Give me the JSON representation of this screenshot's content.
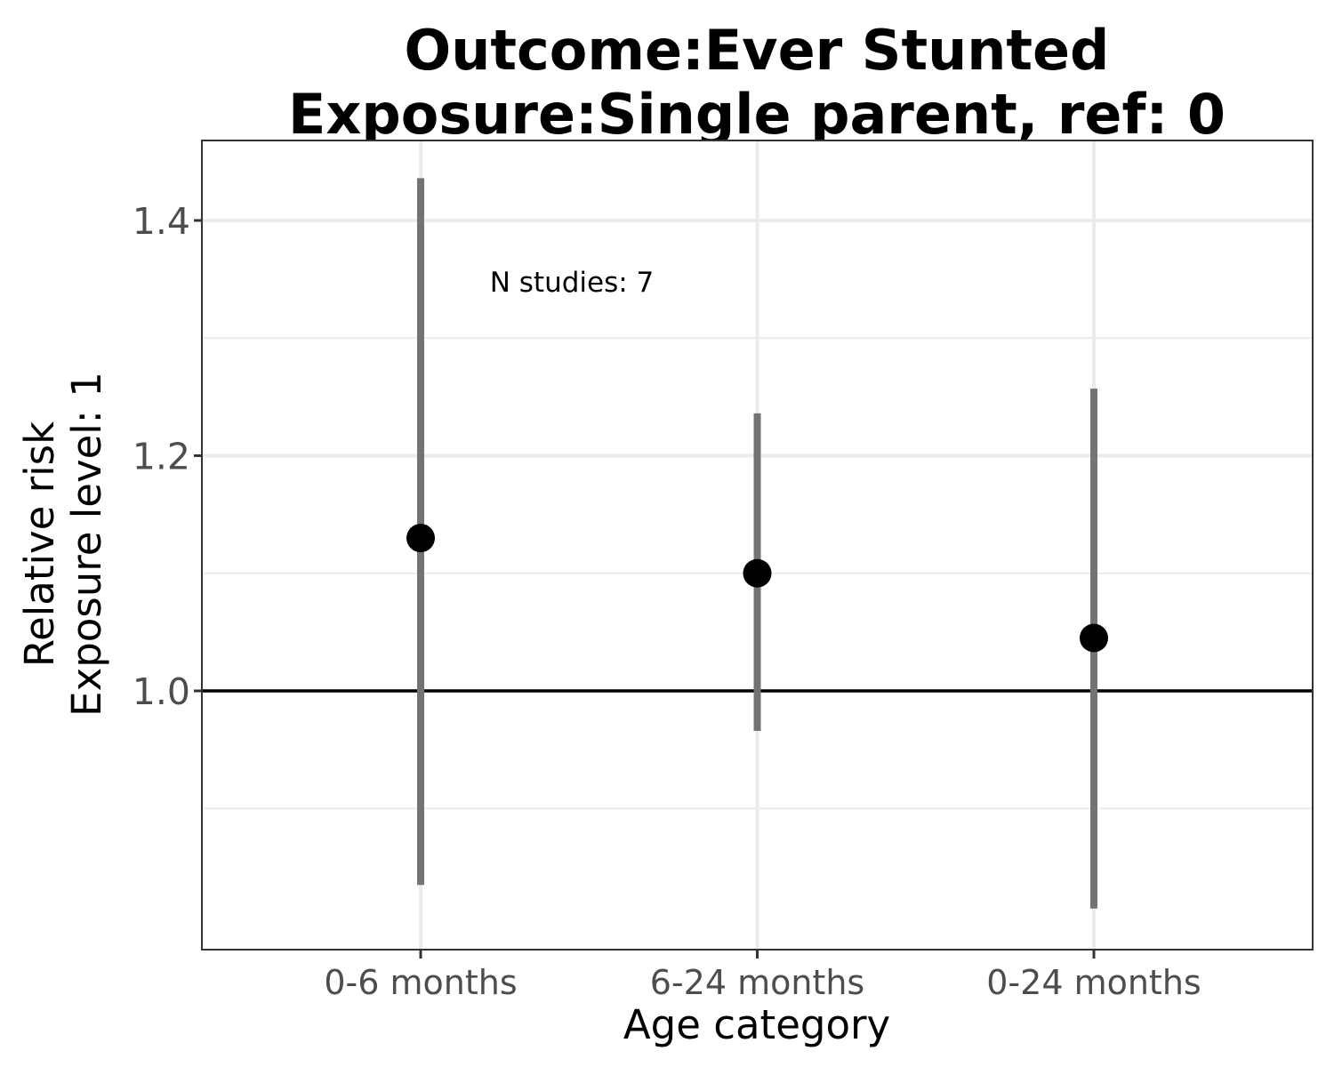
{
  "chart_data": {
    "type": "scatter",
    "title": "Outcome:Ever Stunted\nExposure:Single parent, ref: 0",
    "title_lines": [
      "Outcome:Ever Stunted",
      "Exposure:Single parent, ref: 0"
    ],
    "xlabel": "Age category",
    "ylabel_lines": [
      "Relative risk",
      "Exposure level: 1"
    ],
    "categories": [
      "0-6 months",
      "6-24 months",
      "0-24 months"
    ],
    "series": [
      {
        "values": [
          1.13,
          1.1,
          1.045
        ],
        "ci_lower": [
          0.835,
          0.966,
          0.815
        ],
        "ci_upper": [
          1.436,
          1.236,
          1.257
        ]
      }
    ],
    "ylim": [
      0.78,
      1.468
    ],
    "yticks": [
      1.0,
      1.2,
      1.4
    ],
    "ytick_labels": [
      "1.0",
      "1.2",
      "1.4"
    ],
    "reference_line": 1.0,
    "annotation": "N studies: 7",
    "grid": true,
    "legend": "none",
    "colors": {
      "point": "#000000",
      "ci_line": "#737373",
      "reference": "#000000",
      "grid": "#ebebeb"
    }
  }
}
